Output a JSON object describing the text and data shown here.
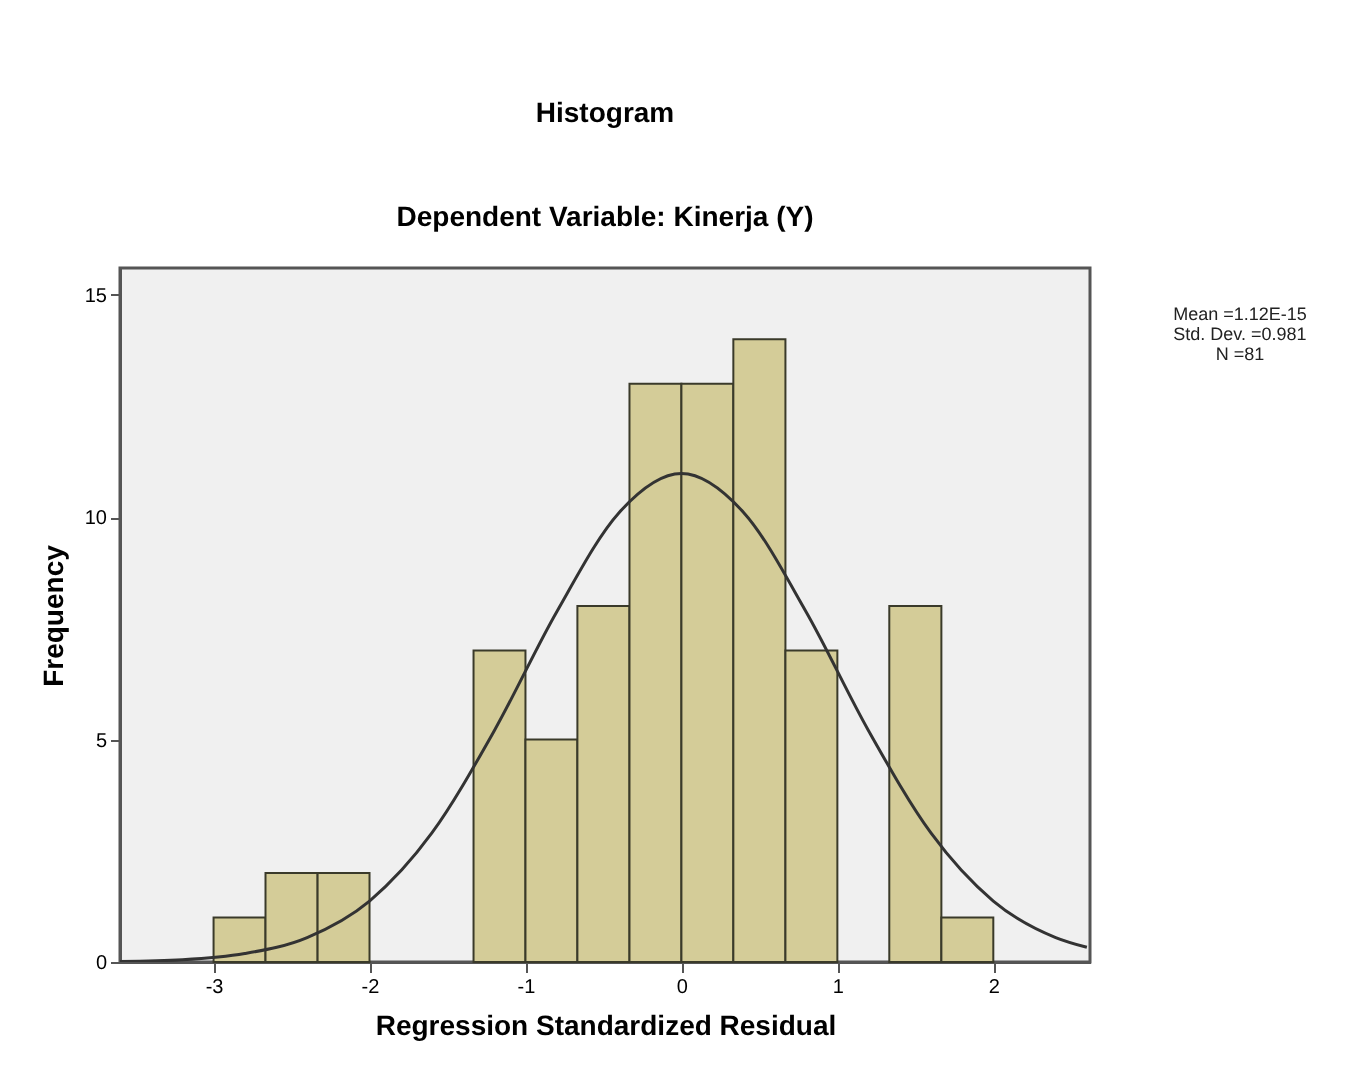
{
  "chart_data": {
    "type": "histogram",
    "title": "Histogram",
    "subtitle": "Dependent Variable: Kinerja (Y)",
    "xlabel": "Regression Standardized Residual",
    "ylabel": "Frequency",
    "bins": [
      -3,
      -2.667,
      -2.333,
      -2,
      -1.667,
      -1.333,
      -1,
      -0.667,
      -0.333,
      0,
      0.333,
      0.667,
      1,
      1.333,
      1.667,
      2
    ],
    "values": [
      1,
      2,
      2,
      0,
      0,
      7,
      5,
      8,
      13,
      13,
      14,
      7,
      0,
      8,
      1
    ],
    "color": "#d4cc98",
    "series": [
      {
        "type": "line",
        "color": "#333333",
        "x": [
          -3.6,
          -3.2,
          -2.8,
          -2.4,
          -2.0,
          -1.6,
          -1.2,
          -0.8,
          -0.4,
          0,
          0.4,
          0.8,
          1.2,
          1.6,
          2.0,
          2.4,
          2.6
        ],
        "values": [
          0.01,
          0.05,
          0.19,
          0.55,
          1.37,
          2.9,
          5.2,
          7.87,
          10.1,
          10.98,
          10.1,
          7.87,
          5.2,
          2.9,
          1.37,
          0.55,
          0.33
        ]
      }
    ],
    "xlim": [
      -3.6,
      2.62
    ],
    "ylim": [
      0,
      15.6
    ],
    "xticks": [
      -3,
      -2,
      -1,
      0,
      1,
      2
    ],
    "yticks": [
      0,
      5,
      10,
      15
    ],
    "annotations": [
      "Mean =1.12E-15",
      "Std. Dev. =0.981",
      "N =81"
    ]
  }
}
